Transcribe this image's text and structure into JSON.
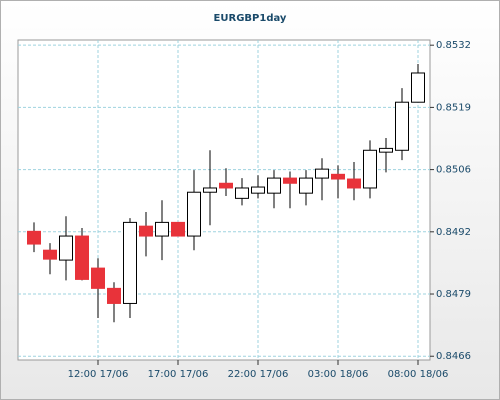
{
  "chart_data": {
    "type": "candlestick",
    "title": "EURGBP1day",
    "categories": [
      null,
      null,
      null,
      null,
      "12:00 17/06",
      null,
      null,
      null,
      null,
      "17:00 17/06",
      null,
      null,
      null,
      null,
      "22:00 17/06",
      null,
      null,
      null,
      null,
      "03:00 18/06",
      null,
      null,
      null,
      null,
      "08:00 18/06"
    ],
    "open": [
      0.84925,
      0.84885,
      0.84864,
      0.84915,
      0.84847,
      0.84804,
      0.84772,
      0.84936,
      0.84915,
      0.84944,
      0.84915,
      0.85008,
      0.85027,
      0.84995,
      0.85006,
      0.85006,
      0.85038,
      0.85006,
      0.85038,
      0.85046,
      0.85036,
      0.85017,
      0.85093,
      0.85097,
      0.85199
    ],
    "high": [
      0.84944,
      0.849,
      0.84957,
      0.84932,
      0.84868,
      0.84817,
      0.84953,
      0.84966,
      0.84991,
      0.84944,
      0.85055,
      0.85097,
      0.85059,
      0.85038,
      0.85044,
      0.85055,
      0.85052,
      0.85055,
      0.8508,
      0.85065,
      0.85072,
      0.85118,
      0.85123,
      0.85229,
      0.8528
    ],
    "low": [
      0.84881,
      0.84834,
      0.84821,
      0.84821,
      0.84741,
      0.84732,
      0.84741,
      0.84872,
      0.84864,
      0.84915,
      0.84885,
      0.84938,
      0.85,
      0.8498,
      0.84995,
      0.84974,
      0.84974,
      0.8498,
      0.84991,
      0.84995,
      0.84991,
      0.84995,
      0.8505,
      0.85076,
      0.85199
    ],
    "close": [
      0.84898,
      0.84866,
      0.84915,
      0.84823,
      0.84804,
      0.84772,
      0.84944,
      0.84915,
      0.84944,
      0.84915,
      0.85008,
      0.85017,
      0.85017,
      0.85017,
      0.85019,
      0.85038,
      0.85027,
      0.85038,
      0.85057,
      0.85036,
      0.85017,
      0.85097,
      0.85101,
      0.85199,
      0.85261
    ],
    "up_color": "#ffffff",
    "down_color": "#e8333a",
    "ylim": [
      0.84652,
      0.85331
    ],
    "yticks": [
      0.8466,
      {
        "value": 0.84792,
        "label": "0.8479"
      },
      {
        "value": 0.84924,
        "label": "0.8492"
      },
      {
        "value": 0.85056,
        "label": "0.8506"
      },
      {
        "value": 0.85188,
        "label": "0.8519"
      },
      0.8532
    ],
    "grid": true
  }
}
